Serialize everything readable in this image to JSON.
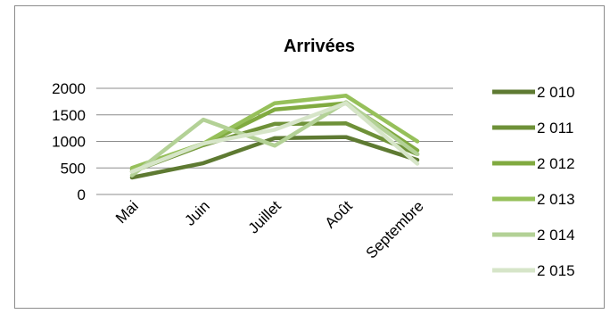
{
  "chart_data": {
    "type": "line",
    "title": "Arrivées",
    "xlabel": "",
    "ylabel": "",
    "categories": [
      "Mai",
      "Juin",
      "Juillet",
      "Août",
      "Septembre"
    ],
    "yticks": [
      "0",
      "500",
      "1000",
      "1500",
      "2000"
    ],
    "ylim": [
      0,
      2000
    ],
    "grid": true,
    "legend_position": "right",
    "series": [
      {
        "name": "2 010",
        "color": "#5e7a32",
        "values": [
          320,
          590,
          1060,
          1080,
          650
        ]
      },
      {
        "name": "2 011",
        "color": "#6e9138",
        "values": [
          430,
          930,
          1330,
          1340,
          760
        ]
      },
      {
        "name": "2 012",
        "color": "#80aa40",
        "values": [
          470,
          940,
          1600,
          1720,
          830
        ]
      },
      {
        "name": "2 013",
        "color": "#96c05a",
        "values": [
          500,
          960,
          1720,
          1860,
          1000
        ]
      },
      {
        "name": "2 014",
        "color": "#b3d196",
        "values": [
          360,
          1410,
          920,
          1740,
          760
        ]
      },
      {
        "name": "2 015",
        "color": "#d6e5c8",
        "values": [
          430,
          960,
          1220,
          1720,
          580
        ]
      }
    ]
  }
}
